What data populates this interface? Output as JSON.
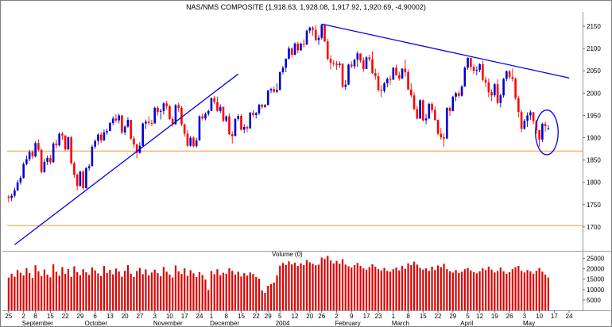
{
  "title": "NAS/NMS COMPOSITE (1,918.63, 1,928.08, 1,917.92, 1,920.69, -4.90002)",
  "chart_data": {
    "type": "candlestick",
    "instrument": "NAS/NMS COMPOSITE",
    "last_quote": {
      "open": "1,918.63",
      "high": "1,928.08",
      "low": "1,917.92",
      "close": "1,920.69",
      "change": "-4.90002"
    },
    "price_pane": {
      "ylim": [
        1650,
        2175
      ],
      "y_ticks": [
        2150,
        2100,
        2050,
        2000,
        1950,
        1900,
        1850,
        1800,
        1750,
        1700
      ],
      "up_color": "#0000cc",
      "down_color": "#ff0000",
      "trend_color": "#0000ee",
      "support_lines": {
        "color": "#ffa85c",
        "values": [
          1870,
          1703
        ]
      },
      "trendlines": [
        {
          "name": "uptrend-line",
          "from_index": 2,
          "from_price": 1660,
          "to_index": 77,
          "to_price": 2043
        },
        {
          "name": "downtrend-line",
          "from_index": 105,
          "from_price": 2155,
          "to_index": 188,
          "to_price": 2034
        }
      ],
      "ellipse": {
        "center_index": 180.5,
        "center_price": 1912,
        "radius_bars": 3.8,
        "radius_price": 50
      }
    },
    "volume_pane": {
      "label": "Volume (0)",
      "ylim": [
        0,
        27500
      ],
      "y_ticks": [
        25000,
        20000,
        15000,
        10000,
        5000
      ],
      "bar_color": "#dd0000"
    },
    "x_axis": {
      "total_slots": 193,
      "tick_indices": [
        0,
        5,
        9,
        14,
        19,
        24,
        29,
        34,
        39,
        44,
        49,
        54,
        59,
        64,
        68,
        73,
        78,
        83,
        87,
        91,
        96,
        101,
        105,
        110,
        115,
        120,
        124,
        129,
        134,
        139,
        144,
        149,
        154,
        158,
        163,
        168,
        173,
        178,
        183,
        188
      ],
      "tick_labels": [
        "25",
        "2",
        "8",
        "15",
        "22",
        "29",
        "6",
        "13",
        "20",
        "27",
        "3",
        "10",
        "17",
        "24",
        "1",
        "8",
        "15",
        "22",
        "29",
        "5",
        "12",
        "20",
        "26",
        "2",
        "9",
        "17",
        "23",
        "1",
        "8",
        "15",
        "22",
        "29",
        "5",
        "12",
        "19",
        "26",
        "3",
        "10",
        "17",
        "24"
      ],
      "month_indices": [
        5,
        26,
        49,
        68,
        90,
        110,
        129,
        152,
        173
      ],
      "month_labels": [
        "September",
        "October",
        "November",
        "December",
        "2004",
        "February",
        "March",
        "April",
        "May"
      ]
    },
    "ohlc": [
      [
        1768,
        1772,
        1755,
        1765
      ],
      [
        1765,
        1775,
        1758,
        1770
      ],
      [
        1770,
        1788,
        1766,
        1782
      ],
      [
        1782,
        1805,
        1780,
        1800
      ],
      [
        1800,
        1815,
        1795,
        1810
      ],
      [
        1810,
        1845,
        1808,
        1841
      ],
      [
        1841,
        1860,
        1838,
        1852
      ],
      [
        1852,
        1873,
        1847,
        1868
      ],
      [
        1868,
        1872,
        1852,
        1858
      ],
      [
        1858,
        1892,
        1856,
        1888
      ],
      [
        1888,
        1896,
        1870,
        1873
      ],
      [
        1873,
        1875,
        1820,
        1823
      ],
      [
        1823,
        1852,
        1821,
        1846
      ],
      [
        1846,
        1860,
        1839,
        1855
      ],
      [
        1855,
        1862,
        1840,
        1845
      ],
      [
        1845,
        1890,
        1844,
        1887
      ],
      [
        1887,
        1896,
        1876,
        1883
      ],
      [
        1883,
        1912,
        1880,
        1909
      ],
      [
        1909,
        1913,
        1895,
        1905
      ],
      [
        1905,
        1906,
        1870,
        1874
      ],
      [
        1874,
        1903,
        1872,
        1901
      ],
      [
        1901,
        1904,
        1840,
        1843
      ],
      [
        1843,
        1846,
        1810,
        1817
      ],
      [
        1817,
        1820,
        1782,
        1792
      ],
      [
        1792,
        1826,
        1790,
        1824
      ],
      [
        1824,
        1827,
        1783,
        1787
      ],
      [
        1787,
        1834,
        1786,
        1832
      ],
      [
        1832,
        1841,
        1826,
        1836
      ],
      [
        1836,
        1884,
        1836,
        1880
      ],
      [
        1880,
        1896,
        1875,
        1893
      ],
      [
        1893,
        1910,
        1884,
        1907
      ],
      [
        1907,
        1913,
        1888,
        1894
      ],
      [
        1894,
        1918,
        1893,
        1912
      ],
      [
        1912,
        1920,
        1906,
        1915
      ],
      [
        1915,
        1936,
        1914,
        1933
      ],
      [
        1933,
        1948,
        1928,
        1943
      ],
      [
        1943,
        1953,
        1934,
        1939
      ],
      [
        1939,
        1954,
        1932,
        1950
      ],
      [
        1950,
        1951,
        1908,
        1912
      ],
      [
        1912,
        1928,
        1906,
        1925
      ],
      [
        1925,
        1946,
        1922,
        1940
      ],
      [
        1940,
        1940,
        1895,
        1898
      ],
      [
        1898,
        1904,
        1878,
        1885
      ],
      [
        1885,
        1887,
        1854,
        1866
      ],
      [
        1866,
        1890,
        1864,
        1882
      ],
      [
        1882,
        1934,
        1881,
        1932
      ],
      [
        1932,
        1941,
        1920,
        1936
      ],
      [
        1936,
        1948,
        1928,
        1933
      ],
      [
        1933,
        1940,
        1926,
        1932
      ],
      [
        1932,
        1970,
        1932,
        1967
      ],
      [
        1967,
        1971,
        1950,
        1958
      ],
      [
        1958,
        1965,
        1941,
        1960
      ],
      [
        1960,
        1980,
        1952,
        1977
      ],
      [
        1977,
        1983,
        1963,
        1971
      ],
      [
        1971,
        1973,
        1940,
        1942
      ],
      [
        1942,
        1946,
        1925,
        1930
      ],
      [
        1930,
        1976,
        1929,
        1973
      ],
      [
        1973,
        1978,
        1958,
        1967
      ],
      [
        1967,
        1971,
        1926,
        1930
      ],
      [
        1930,
        1932,
        1902,
        1909
      ],
      [
        1909,
        1918,
        1879,
        1882
      ],
      [
        1882,
        1904,
        1880,
        1900
      ],
      [
        1900,
        1903,
        1878,
        1881
      ],
      [
        1881,
        1900,
        1878,
        1894
      ],
      [
        1894,
        1950,
        1894,
        1948
      ],
      [
        1948,
        1955,
        1939,
        1943
      ],
      [
        1943,
        1957,
        1939,
        1953
      ],
      [
        1953,
        1963,
        1949,
        1960
      ],
      [
        1960,
        1990,
        1960,
        1989
      ],
      [
        1989,
        1994,
        1975,
        1980
      ],
      [
        1980,
        1992,
        1958,
        1960
      ],
      [
        1960,
        1975,
        1955,
        1969
      ],
      [
        1969,
        1970,
        1935,
        1938
      ],
      [
        1938,
        1950,
        1934,
        1948
      ],
      [
        1948,
        1954,
        1906,
        1908
      ],
      [
        1908,
        1914,
        1887,
        1904
      ],
      [
        1904,
        1944,
        1903,
        1942
      ],
      [
        1942,
        1953,
        1938,
        1949
      ],
      [
        1949,
        1953,
        1916,
        1918
      ],
      [
        1918,
        1930,
        1910,
        1924
      ],
      [
        1924,
        1927,
        1912,
        1921
      ],
      [
        1921,
        1958,
        1920,
        1956
      ],
      [
        1956,
        1962,
        1946,
        1951
      ],
      [
        1951,
        1958,
        1943,
        1955
      ],
      [
        1955,
        1976,
        1951,
        1974
      ],
      [
        1974,
        1976,
        1965,
        1969
      ],
      [
        1969,
        1976,
        1967,
        1973
      ],
      [
        1973,
        2007,
        1973,
        2006
      ],
      [
        2006,
        2012,
        2000,
        2009
      ],
      [
        2009,
        2015,
        2000,
        2003
      ],
      [
        2003,
        2022,
        2000,
        2007
      ],
      [
        2007,
        2049,
        2007,
        2047
      ],
      [
        2047,
        2061,
        2042,
        2057
      ],
      [
        2057,
        2078,
        2047,
        2077
      ],
      [
        2077,
        2105,
        2076,
        2100
      ],
      [
        2100,
        2103,
        2080,
        2086
      ],
      [
        2086,
        2114,
        2085,
        2111
      ],
      [
        2111,
        2115,
        2089,
        2096
      ],
      [
        2096,
        2113,
        2095,
        2111
      ],
      [
        2111,
        2121,
        2102,
        2109
      ],
      [
        2109,
        2142,
        2108,
        2140
      ],
      [
        2140,
        2149,
        2134,
        2147
      ],
      [
        2147,
        2150,
        2129,
        2142
      ],
      [
        2142,
        2152,
        2117,
        2119
      ],
      [
        2119,
        2130,
        2108,
        2124
      ],
      [
        2124,
        2155,
        2120,
        2153
      ],
      [
        2153,
        2154,
        2115,
        2116
      ],
      [
        2116,
        2122,
        2073,
        2077
      ],
      [
        2077,
        2085,
        2053,
        2068
      ],
      [
        2068,
        2074,
        2060,
        2066
      ],
      [
        2066,
        2072,
        2052,
        2063
      ],
      [
        2063,
        2071,
        2057,
        2066
      ],
      [
        2066,
        2067,
        2012,
        2014
      ],
      [
        2014,
        2029,
        2007,
        2019
      ],
      [
        2019,
        2066,
        2018,
        2064
      ],
      [
        2064,
        2071,
        2056,
        2060
      ],
      [
        2060,
        2077,
        2054,
        2075
      ],
      [
        2075,
        2094,
        2059,
        2089
      ],
      [
        2089,
        2089,
        2068,
        2073
      ],
      [
        2073,
        2080,
        2048,
        2054
      ],
      [
        2054,
        2083,
        2054,
        2080
      ],
      [
        2080,
        2086,
        2071,
        2076
      ],
      [
        2076,
        2094,
        2043,
        2045
      ],
      [
        2045,
        2055,
        2030,
        2038
      ],
      [
        2038,
        2046,
        2003,
        2007
      ],
      [
        2007,
        2018,
        1991,
        2005
      ],
      [
        2005,
        2025,
        2001,
        2022
      ],
      [
        2022,
        2035,
        2013,
        2032
      ],
      [
        2032,
        2039,
        2019,
        2030
      ],
      [
        2030,
        2058,
        2030,
        2057
      ],
      [
        2057,
        2064,
        2039,
        2040
      ],
      [
        2040,
        2048,
        2028,
        2033
      ],
      [
        2033,
        2056,
        2031,
        2055
      ],
      [
        2055,
        2075,
        2037,
        2047
      ],
      [
        2047,
        2053,
        2007,
        2008
      ],
      [
        2008,
        2022,
        1990,
        1995
      ],
      [
        1995,
        2002,
        1962,
        1964
      ],
      [
        1964,
        1972,
        1941,
        1943
      ],
      [
        1943,
        1986,
        1942,
        1984
      ],
      [
        1984,
        1986,
        1936,
        1939
      ],
      [
        1939,
        1953,
        1930,
        1943
      ],
      [
        1943,
        1978,
        1942,
        1976
      ],
      [
        1976,
        1979,
        1956,
        1962
      ],
      [
        1962,
        1970,
        1938,
        1940
      ],
      [
        1940,
        1941,
        1905,
        1909
      ],
      [
        1909,
        1922,
        1896,
        1901
      ],
      [
        1901,
        1910,
        1880,
        1898
      ],
      [
        1898,
        1968,
        1898,
        1967
      ],
      [
        1967,
        1971,
        1949,
        1960
      ],
      [
        1960,
        1994,
        1959,
        1992
      ],
      [
        1992,
        2003,
        1982,
        2000
      ],
      [
        2000,
        2005,
        1990,
        1994
      ],
      [
        1994,
        2018,
        1992,
        2015
      ],
      [
        2015,
        2060,
        2014,
        2057
      ],
      [
        2057,
        2080,
        2052,
        2079
      ],
      [
        2079,
        2080,
        2051,
        2059
      ],
      [
        2059,
        2064,
        2043,
        2050
      ],
      [
        2050,
        2060,
        2040,
        2052
      ],
      [
        2052,
        2067,
        2047,
        2065
      ],
      [
        2065,
        2073,
        2026,
        2030
      ],
      [
        2030,
        2037,
        2013,
        2024
      ],
      [
        2024,
        2033,
        1991,
        2002
      ],
      [
        2002,
        2008,
        1982,
        1995
      ],
      [
        1995,
        2022,
        1991,
        2020
      ],
      [
        2020,
        2032,
        1975,
        1978
      ],
      [
        1978,
        1999,
        1968,
        1995
      ],
      [
        1995,
        2034,
        1990,
        2032
      ],
      [
        2032,
        2051,
        2027,
        2049
      ],
      [
        2049,
        2052,
        2031,
        2036
      ],
      [
        2036,
        2055,
        2026,
        2032
      ],
      [
        2032,
        2035,
        1985,
        1989
      ],
      [
        1989,
        1994,
        1946,
        1958
      ],
      [
        1958,
        1963,
        1912,
        1920
      ],
      [
        1920,
        1942,
        1918,
        1938
      ],
      [
        1938,
        1957,
        1924,
        1950
      ],
      [
        1950,
        1962,
        1940,
        1957
      ],
      [
        1957,
        1958,
        1930,
        1937
      ],
      [
        1937,
        1940,
        1909,
        1917
      ],
      [
        1917,
        1918,
        1880,
        1896
      ],
      [
        1896,
        1934,
        1890,
        1931
      ],
      [
        1931,
        1936,
        1913,
        1926
      ],
      [
        1918.63,
        1928.08,
        1917.92,
        1920.69
      ]
    ],
    "volume": [
      15800,
      17600,
      16200,
      19400,
      18100,
      16800,
      20300,
      17900,
      15600,
      21700,
      18800,
      16400,
      19600,
      17200,
      15900,
      22100,
      18500,
      16700,
      20800,
      17500,
      19900,
      16100,
      21200,
      18400,
      16900,
      19800,
      18300,
      17100,
      20600,
      19200,
      17800,
      16500,
      21400,
      18000,
      19500,
      17300,
      20100,
      18700,
      16200,
      19000,
      21800,
      17600,
      16100,
      18900,
      20400,
      17400,
      19700,
      16800,
      18200,
      19600,
      17900,
      16400,
      20900,
      18600,
      17200,
      15800,
      21600,
      18800,
      17500,
      20200,
      16600,
      19300,
      17800,
      16000,
      18400,
      17000,
      14800,
      9800,
      18900,
      17400,
      19800,
      16900,
      18100,
      17600,
      20300,
      19000,
      17200,
      18600,
      16300,
      17900,
      16700,
      18200,
      17500,
      16100,
      15200,
      9600,
      8400,
      11800,
      12600,
      13400,
      16800,
      21500,
      22800,
      21900,
      23600,
      22100,
      22900,
      21400,
      22600,
      21800,
      24200,
      23100,
      22400,
      21700,
      22000,
      25400,
      24800,
      26200,
      24000,
      22600,
      23800,
      22400,
      24600,
      22000,
      21200,
      20600,
      21800,
      22800,
      21400,
      20200,
      19600,
      20800,
      22200,
      21000,
      19800,
      19200,
      20400,
      19000,
      18600,
      19800,
      20600,
      19200,
      21400,
      20000,
      22600,
      21800,
      23400,
      22000,
      20400,
      19600,
      20200,
      19000,
      21000,
      19400,
      21600,
      20800,
      22400,
      19800,
      18800,
      18200,
      19400,
      18000,
      18600,
      19800,
      20400,
      19200,
      18400,
      17800,
      18800,
      20200,
      19400,
      21000,
      19600,
      18200,
      19000,
      20600,
      18800,
      17600,
      18400,
      19800,
      20800,
      21400,
      19000,
      18200,
      19400,
      18800,
      17600,
      19000,
      20400,
      18600,
      17200,
      15800
    ]
  }
}
